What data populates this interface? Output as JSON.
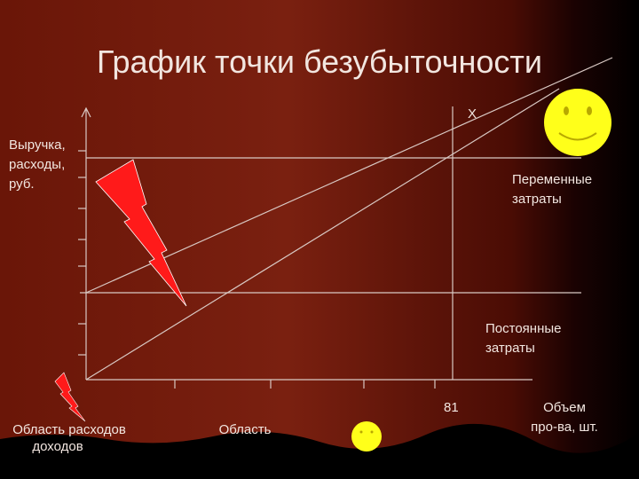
{
  "title": "График точки безубыточности",
  "intersection_label": "X",
  "axis_y_label": [
    "Выручка,",
    "расходы,",
    "руб."
  ],
  "variable_costs": [
    "Переменные",
    "затраты"
  ],
  "fixed_costs": [
    "Постоянные",
    "затраты"
  ],
  "break_even_volume": "81",
  "axis_x_label": [
    "Объем",
    "про-ва, шт."
  ],
  "loss_area": [
    "Область расходов",
    "доходов"
  ],
  "profit_area": "Область"
}
